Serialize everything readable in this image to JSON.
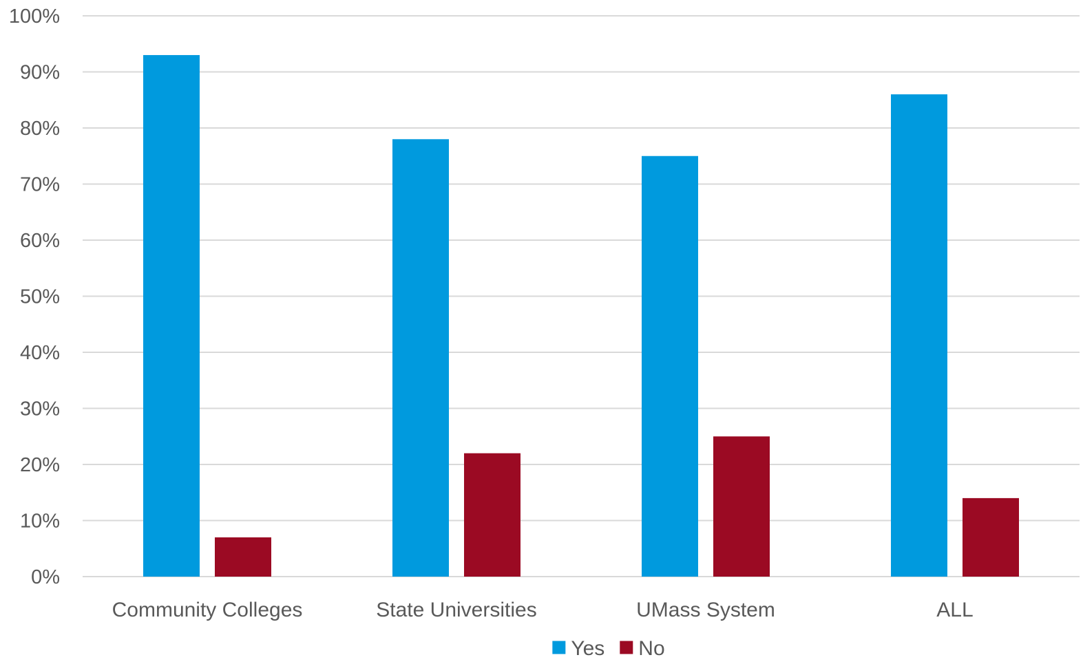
{
  "chart_data": {
    "type": "bar",
    "categories": [
      "Community Colleges",
      "State Universities",
      "UMass System",
      "ALL"
    ],
    "series": [
      {
        "name": "Yes",
        "values": [
          93,
          78,
          75,
          86
        ],
        "color": "#009ADE"
      },
      {
        "name": "No",
        "values": [
          7,
          22,
          25,
          14
        ],
        "color": "#9B0A23"
      }
    ],
    "y_ticks": [
      "0%",
      "10%",
      "20%",
      "30%",
      "40%",
      "50%",
      "60%",
      "70%",
      "80%",
      "90%",
      "100%"
    ],
    "ylim": [
      0,
      100
    ],
    "grid": true,
    "legend_position": "bottom-center"
  }
}
